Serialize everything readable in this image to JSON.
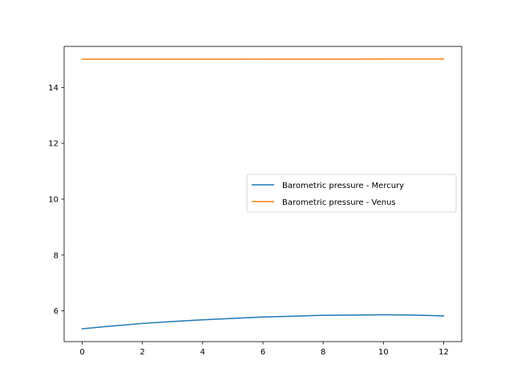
{
  "chart_data": {
    "type": "line",
    "title": "",
    "xlabel": "",
    "ylabel": "",
    "xlim": [
      -0.6,
      12.6
    ],
    "ylim": [
      4.9,
      15.47
    ],
    "x_ticks": [
      0,
      2,
      4,
      6,
      8,
      10,
      12
    ],
    "y_ticks": [
      6,
      8,
      10,
      12,
      14
    ],
    "grid": false,
    "legend": {
      "placement": "center-right"
    },
    "series": [
      {
        "name": "Barometric pressure - Mercury",
        "color": "#1f77b4",
        "x": [
          0,
          1,
          2,
          3,
          4,
          5,
          6,
          7,
          8,
          9,
          10,
          11,
          12
        ],
        "values": [
          5.36,
          5.46,
          5.55,
          5.62,
          5.68,
          5.73,
          5.78,
          5.81,
          5.84,
          5.85,
          5.86,
          5.85,
          5.82
        ]
      },
      {
        "name": "Barometric pressure - Venus",
        "color": "#ff7f0e",
        "x": [
          0,
          1,
          2,
          3,
          4,
          5,
          6,
          7,
          8,
          9,
          10,
          11,
          12
        ],
        "values": [
          15.01,
          15.01,
          15.01,
          15.01,
          15.01,
          15.01,
          15.015,
          15.015,
          15.015,
          15.015,
          15.02,
          15.02,
          15.02
        ]
      }
    ]
  }
}
